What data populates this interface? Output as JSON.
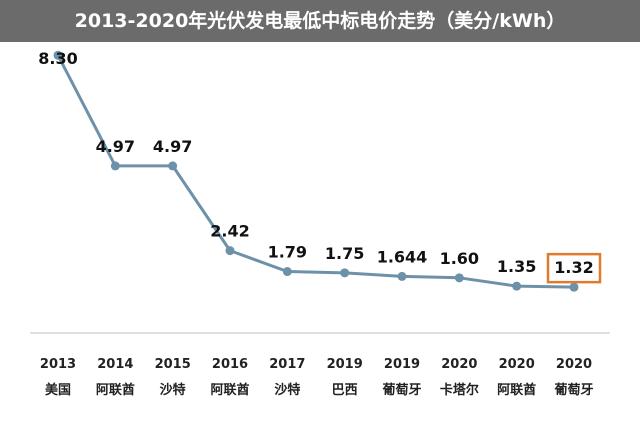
{
  "title": "2013-2020年光伏发电最低中标电价走势（美分/kWh）",
  "colors": {
    "title_bg": "#6b6b6b",
    "line": "#6e91aa",
    "highlight_box": "#e07a2e",
    "axis": "#bfbfbf"
  },
  "chart_data": {
    "type": "line",
    "title": "2013-2020年光伏发电最低中标电价走势（美分/kWh）",
    "categories": [
      {
        "year": "2013",
        "country": "美国"
      },
      {
        "year": "2014",
        "country": "阿联酋"
      },
      {
        "year": "2015",
        "country": "沙特"
      },
      {
        "year": "2016",
        "country": "阿联酋"
      },
      {
        "year": "2017",
        "country": "沙特"
      },
      {
        "year": "2019",
        "country": "巴西"
      },
      {
        "year": "2019",
        "country": "葡萄牙"
      },
      {
        "year": "2020",
        "country": "卡塔尔"
      },
      {
        "year": "2020",
        "country": "阿联酋"
      },
      {
        "year": "2020",
        "country": "葡萄牙"
      }
    ],
    "values": [
      8.3,
      4.97,
      4.97,
      2.42,
      1.79,
      1.75,
      1.644,
      1.6,
      1.35,
      1.32
    ],
    "value_labels": [
      "8.30",
      "4.97",
      "4.97",
      "2.42",
      "1.79",
      "1.75",
      "1.644",
      "1.60",
      "1.35",
      "1.32"
    ],
    "highlight_index": 9,
    "ylim": [
      0,
      9
    ],
    "grid": false,
    "xlabel": "",
    "ylabel": ""
  }
}
